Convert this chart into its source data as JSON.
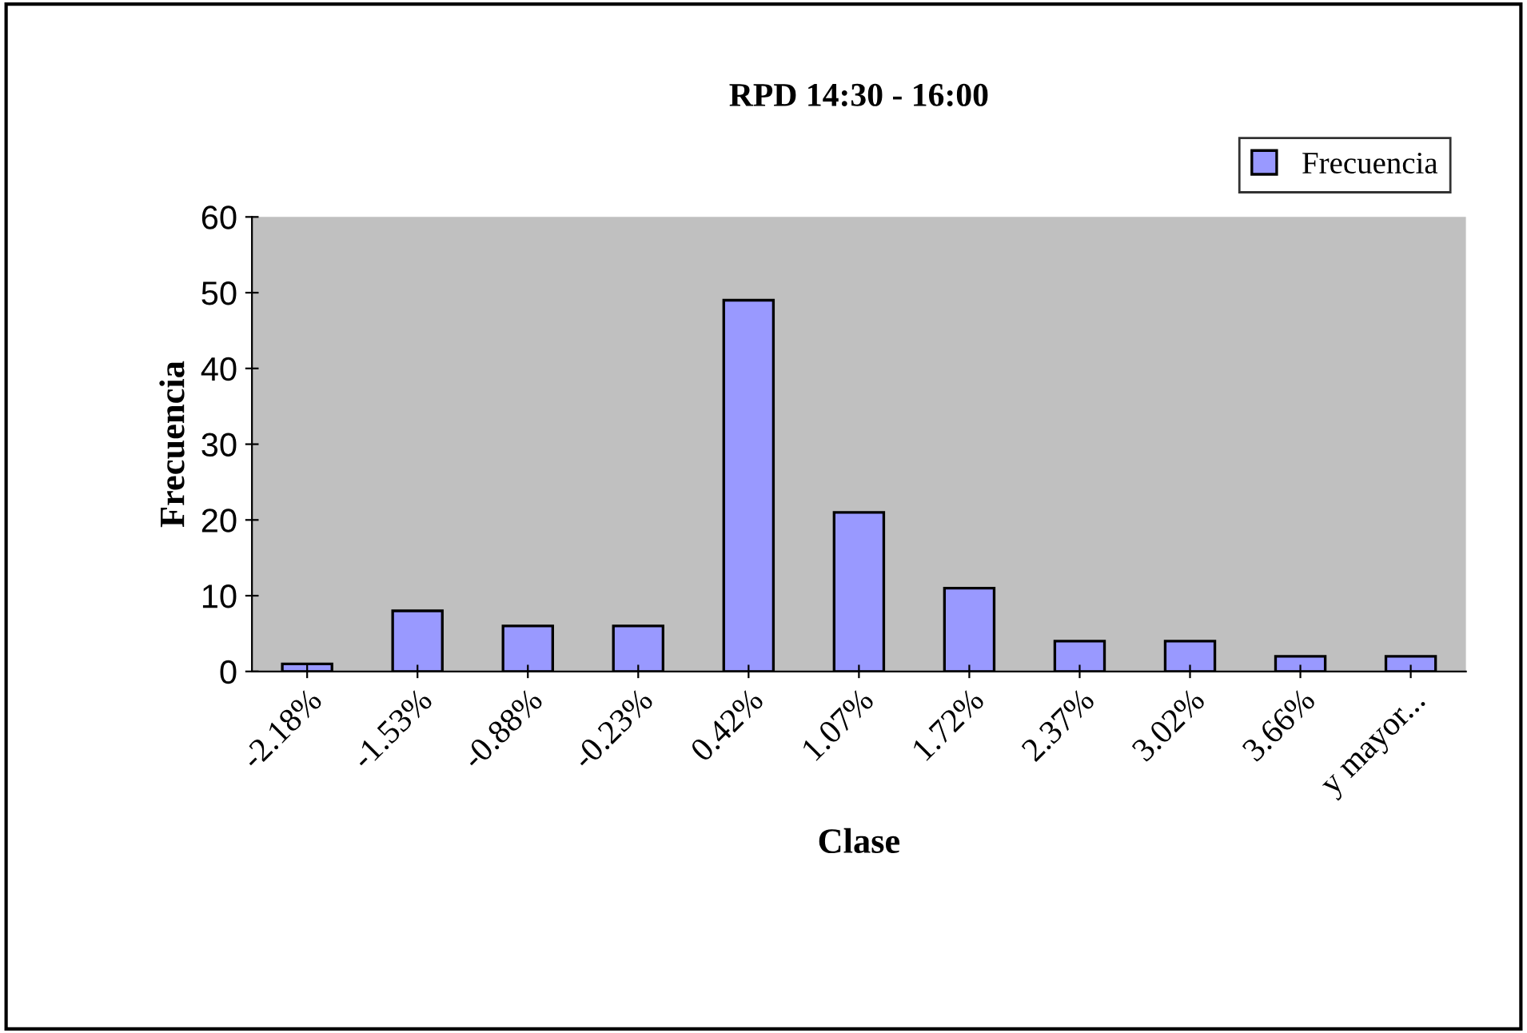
{
  "chart_data": {
    "type": "bar",
    "title": "RPD 14:30 - 16:00",
    "xlabel": "Clase",
    "ylabel": "Frecuencia",
    "categories": [
      "-2.18%",
      "-1.53%",
      "-0.88%",
      "-0.23%",
      "0.42%",
      "1.07%",
      "1.72%",
      "2.37%",
      "3.02%",
      "3.66%",
      "y mayor..."
    ],
    "series": [
      {
        "name": "Frecuencia",
        "color": "#9999ff",
        "values": [
          1,
          8,
          6,
          6,
          49,
          21,
          11,
          4,
          4,
          2,
          2
        ]
      }
    ],
    "ylim": [
      0,
      60
    ],
    "yticks": [
      0,
      10,
      20,
      30,
      40,
      50,
      60
    ],
    "grid": false,
    "legend": "top right"
  }
}
